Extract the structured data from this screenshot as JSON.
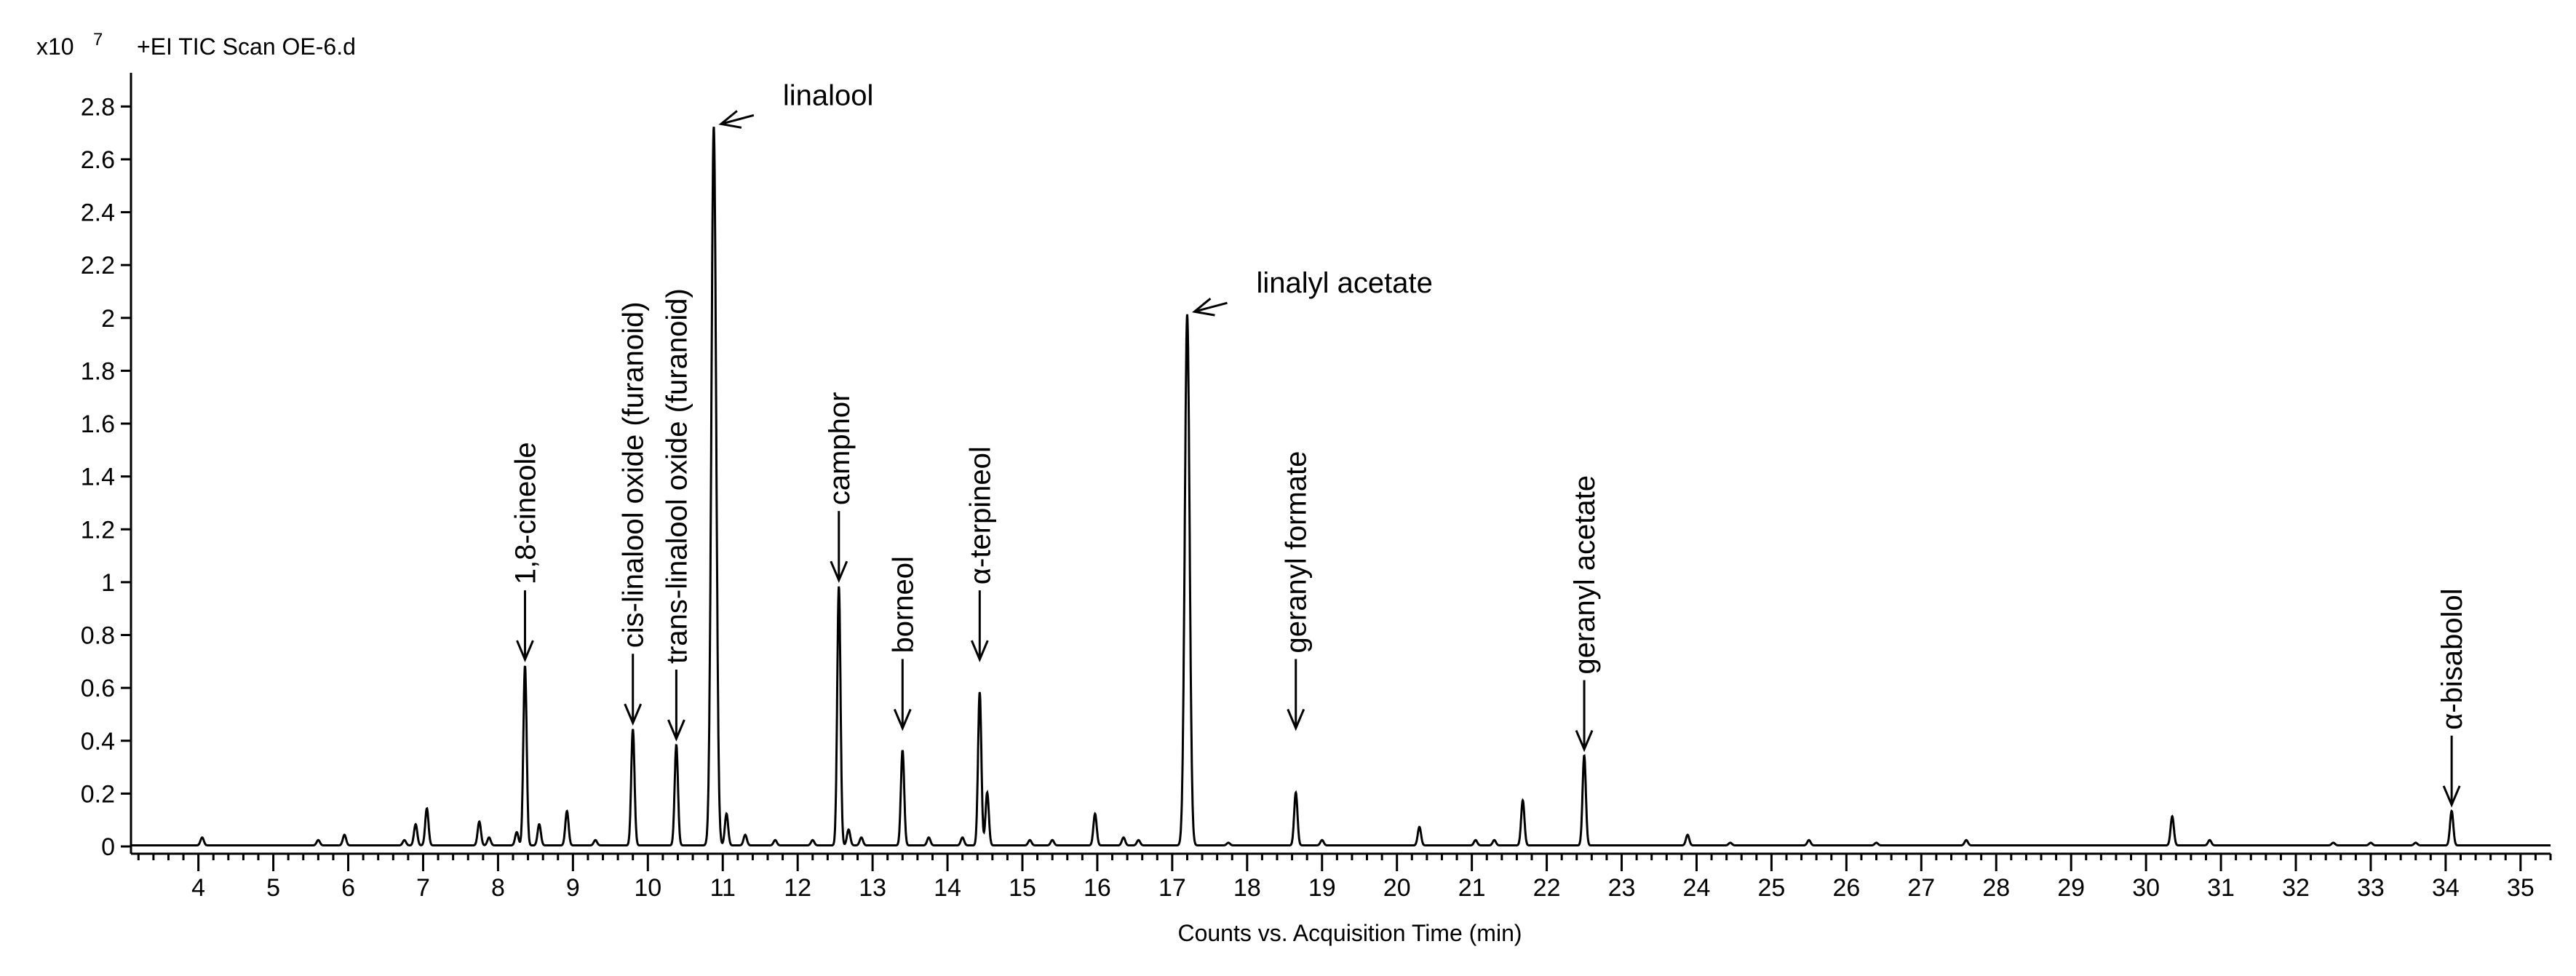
{
  "header": {
    "multiplier_base": "x10",
    "multiplier_exp": "7",
    "title": "+EI TIC Scan OE-6.d"
  },
  "chart_data": {
    "type": "line",
    "title": "+EI TIC Scan OE-6.d",
    "xlabel": "Counts vs. Acquisition Time (min)",
    "ylabel": "",
    "y_multiplier": "x10 7",
    "xlim": [
      3.1,
      35.4
    ],
    "ylim": [
      0,
      2.9
    ],
    "x_ticks": [
      4,
      5,
      6,
      7,
      8,
      9,
      10,
      11,
      12,
      13,
      14,
      15,
      16,
      17,
      18,
      19,
      20,
      21,
      22,
      23,
      24,
      25,
      26,
      27,
      28,
      29,
      30,
      31,
      32,
      33,
      34,
      35
    ],
    "x_tick_labels": [
      "4",
      "5",
      "6",
      "7",
      "8",
      "9",
      "10",
      "11",
      "12",
      "13",
      "14",
      "15",
      "16",
      "17",
      "18",
      "19",
      "20",
      "21",
      "22",
      "23",
      "24",
      "25",
      "26",
      "27",
      "28",
      "29",
      "30",
      "31",
      "32",
      "33",
      "34",
      "35"
    ],
    "y_ticks": [
      0,
      0.2,
      0.4,
      0.6,
      0.8,
      1,
      1.2,
      1.4,
      1.6,
      1.8,
      2,
      2.2,
      2.4,
      2.6,
      2.8
    ],
    "y_tick_labels": [
      "0",
      "0.2",
      "0.4",
      "0.6",
      "0.8",
      "1",
      "1.2",
      "1.4",
      "1.6",
      "1.8",
      "2",
      "2.2",
      "2.4",
      "2.6",
      "2.8"
    ],
    "grid": false,
    "line_color": "#000000",
    "peaks": [
      {
        "t": 4.05,
        "h": 0.03
      },
      {
        "t": 5.6,
        "h": 0.02
      },
      {
        "t": 5.95,
        "h": 0.04
      },
      {
        "t": 6.75,
        "h": 0.02
      },
      {
        "t": 6.9,
        "h": 0.08
      },
      {
        "t": 7.05,
        "h": 0.14
      },
      {
        "t": 7.75,
        "h": 0.09
      },
      {
        "t": 7.88,
        "h": 0.03
      },
      {
        "t": 8.25,
        "h": 0.05
      },
      {
        "t": 8.36,
        "h": 0.68
      },
      {
        "t": 8.55,
        "h": 0.08
      },
      {
        "t": 8.92,
        "h": 0.13
      },
      {
        "t": 9.3,
        "h": 0.02
      },
      {
        "t": 9.8,
        "h": 0.44
      },
      {
        "t": 10.38,
        "h": 0.38
      },
      {
        "t": 10.88,
        "h": 2.72
      },
      {
        "t": 11.05,
        "h": 0.12
      },
      {
        "t": 11.3,
        "h": 0.04
      },
      {
        "t": 11.7,
        "h": 0.02
      },
      {
        "t": 12.2,
        "h": 0.02
      },
      {
        "t": 12.55,
        "h": 0.98
      },
      {
        "t": 12.68,
        "h": 0.06
      },
      {
        "t": 12.85,
        "h": 0.03
      },
      {
        "t": 13.4,
        "h": 0.36
      },
      {
        "t": 13.75,
        "h": 0.03
      },
      {
        "t": 14.2,
        "h": 0.03
      },
      {
        "t": 14.43,
        "h": 0.58
      },
      {
        "t": 14.53,
        "h": 0.2
      },
      {
        "t": 15.1,
        "h": 0.02
      },
      {
        "t": 15.4,
        "h": 0.02
      },
      {
        "t": 15.97,
        "h": 0.12
      },
      {
        "t": 16.35,
        "h": 0.03
      },
      {
        "t": 16.55,
        "h": 0.02
      },
      {
        "t": 17.2,
        "h": 2.01
      },
      {
        "t": 17.75,
        "h": 0.01
      },
      {
        "t": 18.65,
        "h": 0.2
      },
      {
        "t": 19.0,
        "h": 0.02
      },
      {
        "t": 20.3,
        "h": 0.07
      },
      {
        "t": 21.05,
        "h": 0.02
      },
      {
        "t": 21.3,
        "h": 0.02
      },
      {
        "t": 21.68,
        "h": 0.17
      },
      {
        "t": 22.5,
        "h": 0.34
      },
      {
        "t": 23.88,
        "h": 0.04
      },
      {
        "t": 24.45,
        "h": 0.01
      },
      {
        "t": 25.5,
        "h": 0.02
      },
      {
        "t": 26.4,
        "h": 0.01
      },
      {
        "t": 27.6,
        "h": 0.02
      },
      {
        "t": 30.35,
        "h": 0.11
      },
      {
        "t": 30.85,
        "h": 0.02
      },
      {
        "t": 32.5,
        "h": 0.01
      },
      {
        "t": 33.0,
        "h": 0.01
      },
      {
        "t": 33.6,
        "h": 0.01
      },
      {
        "t": 34.08,
        "h": 0.13
      }
    ],
    "annotations": [
      {
        "label": "1,8-cineole",
        "t": 8.36,
        "h": 0.68,
        "orientation": "vertical"
      },
      {
        "label": "cis-linalool oxide (furanoid)",
        "t": 9.8,
        "h": 0.44,
        "orientation": "vertical"
      },
      {
        "label": "trans-linalool oxide (furanoid)",
        "t": 10.38,
        "h": 0.38,
        "orientation": "vertical"
      },
      {
        "label": "linalool",
        "t": 10.88,
        "h": 2.72,
        "orientation": "horizontal"
      },
      {
        "label": "camphor",
        "t": 12.55,
        "h": 0.98,
        "orientation": "vertical"
      },
      {
        "label": "borneol",
        "t": 13.4,
        "h": 0.42,
        "orientation": "vertical"
      },
      {
        "label": "α-terpineol",
        "t": 14.43,
        "h": 0.68,
        "orientation": "vertical"
      },
      {
        "label": "linalyl acetate",
        "t": 17.2,
        "h": 2.01,
        "orientation": "horizontal"
      },
      {
        "label": "geranyl formate",
        "t": 18.65,
        "h": 0.42,
        "orientation": "vertical"
      },
      {
        "label": "geranyl acetate",
        "t": 22.5,
        "h": 0.34,
        "orientation": "vertical"
      },
      {
        "label": "α-bisabolol",
        "t": 34.08,
        "h": 0.13,
        "orientation": "vertical"
      }
    ]
  }
}
